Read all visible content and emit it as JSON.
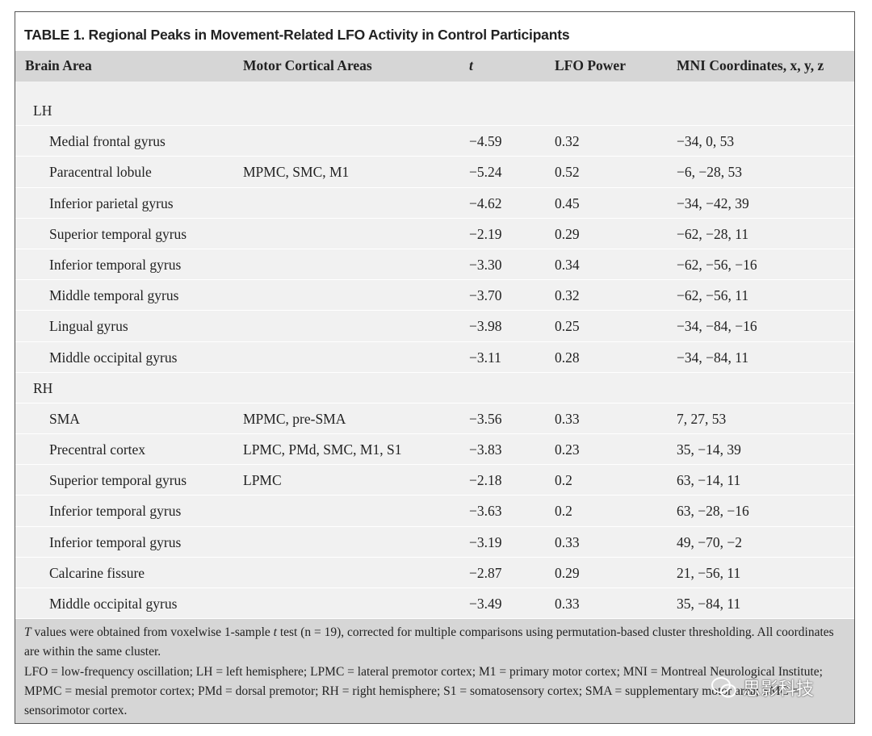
{
  "title": "TABLE 1. Regional Peaks in Movement-Related LFO Activity in Control Participants",
  "header": [
    "Brain Area",
    "Motor Cortical Areas",
    "t",
    "LFO Power",
    "MNI Coordinates, x, y, z"
  ],
  "groups": [
    {
      "label": "LH",
      "rows": [
        [
          "Medial frontal gyrus",
          null,
          "−4.59",
          "0.32",
          "−34, 0, 53"
        ],
        [
          "Paracentral lobule",
          "MPMC, SMC, M1",
          "−5.24",
          "0.52",
          "−6, −28, 53"
        ],
        [
          "Inferior parietal gyrus",
          null,
          "−4.62",
          "0.45",
          "−34, −42, 39"
        ],
        [
          "Superior temporal gyrus",
          null,
          "−2.19",
          "0.29",
          "−62, −28, 11"
        ],
        [
          "Inferior temporal gyrus",
          null,
          "−3.30",
          "0.34",
          "−62, −56, −16"
        ],
        [
          "Middle temporal gyrus",
          null,
          "−3.70",
          "0.32",
          "−62, −56, 11"
        ],
        [
          "Lingual gyrus",
          null,
          "−3.98",
          "0.25",
          "−34, −84, −16"
        ],
        [
          "Middle occipital gyrus",
          null,
          "−3.11",
          "0.28",
          "−34, −84, 11"
        ]
      ]
    },
    {
      "label": "RH",
      "rows": [
        [
          "SMA",
          "MPMC, pre-SMA",
          "−3.56",
          "0.33",
          "7, 27, 53"
        ],
        [
          "Precentral cortex",
          "LPMC, PMd, SMC, M1, S1",
          "−3.83",
          "0.23",
          "35, −14, 39"
        ],
        [
          "Superior temporal gyrus",
          "LPMC",
          "−2.18",
          "0.2",
          "63, −14, 11"
        ],
        [
          "Inferior temporal gyrus",
          null,
          "−3.63",
          "0.2",
          "63, −28, −16"
        ],
        [
          "Inferior temporal gyrus",
          null,
          "−3.19",
          "0.33",
          "49, −70, −2"
        ],
        [
          "Calcarine fissure",
          null,
          "−2.87",
          "0.29",
          "21, −56, 11"
        ],
        [
          "Middle occipital gyrus",
          null,
          "−3.49",
          "0.33",
          "35, −84, 11"
        ]
      ]
    }
  ],
  "notes": [
    [
      {
        "text": "T",
        "italic": true
      },
      {
        "text": " values were obtained from voxelwise 1-sample "
      },
      {
        "text": "t",
        "italic": true
      },
      {
        "text": " test (n = 19), corrected for multiple comparisons using permutation-based cluster thresholding. All coordinates are within the same cluster."
      }
    ],
    [
      {
        "text": "LFO = low-frequency oscillation; LH = left hemisphere; LPMC = lateral premotor cortex; M1 = primary motor cortex; MNI = Montreal Neurological Institute; MPMC = mesial premotor cortex; PMd = dorsal premotor; RH = right hemisphere; S1 = somatosensory cortex; SMA = supplementary motor area; SMC = sensorimotor cortex."
      }
    ]
  ],
  "watermark": "思影科技"
}
